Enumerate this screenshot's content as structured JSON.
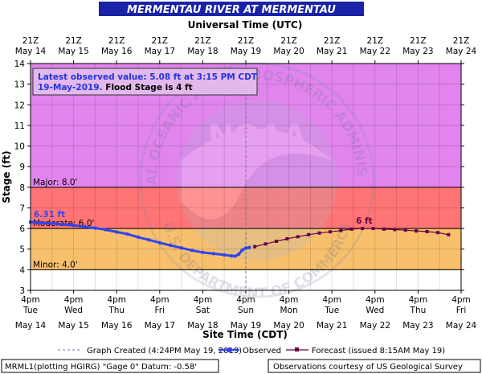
{
  "chart_data": {
    "type": "line",
    "title": "MERMENTAU RIVER AT MERMENTAU",
    "top_axis_label": "Universal Time (UTC)",
    "xlabel": "Site Time (CDT)",
    "ylabel": "Stage (ft)",
    "ylim": [
      3,
      14
    ],
    "yticks": [
      3,
      4,
      5,
      6,
      7,
      8,
      9,
      10,
      11,
      12,
      13,
      14
    ],
    "x_unit": "hours since May 14 4pm CDT",
    "xlim": [
      0,
      240
    ],
    "grid": true,
    "top_ticks": [
      {
        "line1": "21Z",
        "line2": "May 14"
      },
      {
        "line1": "21Z",
        "line2": "May 15"
      },
      {
        "line1": "21Z",
        "line2": "May 16"
      },
      {
        "line1": "21Z",
        "line2": "May 17"
      },
      {
        "line1": "21Z",
        "line2": "May 18"
      },
      {
        "line1": "21Z",
        "line2": "May 19"
      },
      {
        "line1": "21Z",
        "line2": "May 20"
      },
      {
        "line1": "21Z",
        "line2": "May 21"
      },
      {
        "line1": "21Z",
        "line2": "May 22"
      },
      {
        "line1": "21Z",
        "line2": "May 23"
      },
      {
        "line1": "21Z",
        "line2": "May 24"
      }
    ],
    "bottom_ticks": [
      {
        "time": "4pm",
        "day": "Tue",
        "date": "May 14"
      },
      {
        "time": "4pm",
        "day": "Wed",
        "date": "May 15"
      },
      {
        "time": "4pm",
        "day": "Thu",
        "date": "May 16"
      },
      {
        "time": "4pm",
        "day": "Fri",
        "date": "May 17"
      },
      {
        "time": "4pm",
        "day": "Sat",
        "date": "May 18"
      },
      {
        "time": "4pm",
        "day": "Sun",
        "date": "May 19"
      },
      {
        "time": "4pm",
        "day": "Mon",
        "date": "May 20"
      },
      {
        "time": "4pm",
        "day": "Tue",
        "date": "May 21"
      },
      {
        "time": "4pm",
        "day": "Wed",
        "date": "May 22"
      },
      {
        "time": "4pm",
        "day": "Thu",
        "date": "May 23"
      },
      {
        "time": "4pm",
        "day": "Fri",
        "date": "May 24"
      }
    ],
    "bands": [
      {
        "name": "minor",
        "label": "Minor: 4.0'",
        "from": 4,
        "to": 6,
        "color": "#f8c06c"
      },
      {
        "name": "moderate",
        "label": "Moderate: 6.0'",
        "from": 6,
        "to": 8,
        "color": "#ff7474"
      },
      {
        "name": "major",
        "label": "Major: 8.0'",
        "from": 8,
        "to": 14,
        "color": "#e184ee"
      }
    ],
    "graph_created_x": 120,
    "series": [
      {
        "name": "Observed",
        "color": "#3344ee",
        "points": [
          [
            0,
            6.31
          ],
          [
            6,
            6.28
          ],
          [
            12,
            6.25
          ],
          [
            18,
            6.2
          ],
          [
            24,
            6.15
          ],
          [
            30,
            6.08
          ],
          [
            36,
            6.02
          ],
          [
            42,
            5.94
          ],
          [
            48,
            5.83
          ],
          [
            54,
            5.73
          ],
          [
            60,
            5.58
          ],
          [
            66,
            5.45
          ],
          [
            72,
            5.31
          ],
          [
            78,
            5.18
          ],
          [
            84,
            5.06
          ],
          [
            90,
            4.94
          ],
          [
            96,
            4.84
          ],
          [
            102,
            4.78
          ],
          [
            108,
            4.72
          ],
          [
            112,
            4.67
          ],
          [
            114,
            4.66
          ],
          [
            116,
            4.75
          ],
          [
            118,
            4.95
          ],
          [
            120,
            5.05
          ],
          [
            122,
            5.08
          ]
        ]
      },
      {
        "name": "Forecast (issued 8:15AM May 19)",
        "color": "#660044",
        "points": [
          [
            125,
            5.12
          ],
          [
            131,
            5.25
          ],
          [
            137,
            5.38
          ],
          [
            143,
            5.5
          ],
          [
            149,
            5.6
          ],
          [
            155,
            5.7
          ],
          [
            161,
            5.78
          ],
          [
            167,
            5.84
          ],
          [
            173,
            5.9
          ],
          [
            179,
            5.97
          ],
          [
            185,
            6.0
          ],
          [
            191,
            6.0
          ],
          [
            197,
            5.97
          ],
          [
            203,
            5.95
          ],
          [
            209,
            5.92
          ],
          [
            215,
            5.88
          ],
          [
            221,
            5.85
          ],
          [
            227,
            5.8
          ],
          [
            233,
            5.7
          ]
        ]
      }
    ],
    "annotations": [
      {
        "text": "6.31 ft",
        "x": 0,
        "y": 6.31,
        "color": "#3344ee"
      },
      {
        "text": "6 ft",
        "x": 185,
        "y": 6.0,
        "color": "#660044"
      }
    ]
  },
  "info_box": {
    "line1": "Latest observed value: 5.08 ft at 3:15 PM CDT",
    "line2_date": "19-May-2019.",
    "line2_flood": " Flood Stage is 4 ft"
  },
  "watermark": {
    "center": "NOAA",
    "ring_top": "NATIONAL OCEANIC AND ATMOSPHERIC ADMINISTRATION",
    "ring_bottom": "U.S. DEPARTMENT OF COMMERCE"
  },
  "legend": {
    "graph_created": "Graph Created (4:24PM May 19, 2019)",
    "observed": "Observed",
    "forecast": "Forecast (issued 8:15AM May 19)"
  },
  "footer": {
    "left": "MRML1(plotting HGIRG) \"Gage 0\" Datum: -0.58'",
    "right": "Observations courtesy of US Geological Survey"
  },
  "colors": {
    "title_bg": "#1a22a6",
    "bg": "#ffffff"
  }
}
